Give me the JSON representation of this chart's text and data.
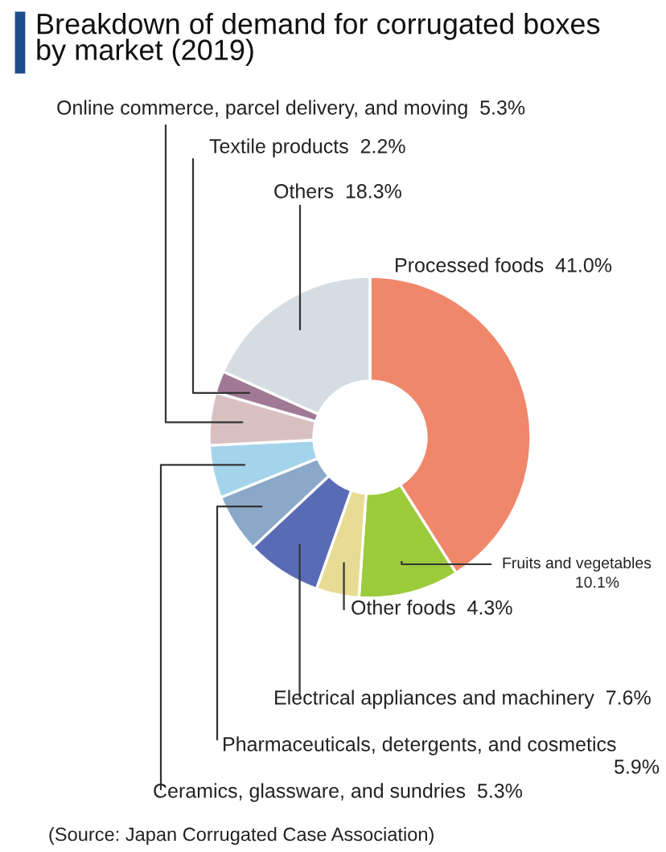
{
  "chart_data": {
    "type": "donut",
    "title": "Breakdown of demand for corrugated boxes\nby market (2019)",
    "categories": [
      "Processed foods",
      "Fruits and vegetables",
      "Other foods",
      "Electrical appliances and machinery",
      "Pharmaceuticals, detergents, and cosmetics",
      "Ceramics, glassware, and sundries",
      "Online commerce, parcel delivery, and moving",
      "Textile products",
      "Others"
    ],
    "values": [
      41.0,
      10.1,
      4.3,
      7.6,
      5.9,
      5.3,
      5.3,
      2.2,
      18.3
    ],
    "value_labels": [
      "41.0%",
      "10.1%",
      "4.3%",
      "7.6%",
      "5.9%",
      "5.3%",
      "5.3%",
      "2.2%",
      "18.3%"
    ],
    "colors": [
      "#f0876b",
      "#9ccb3b",
      "#e8dc94",
      "#5a6bb5",
      "#8aa8c8",
      "#a4d4ec",
      "#d9c0c0",
      "#a07a95",
      "#d5dde2"
    ],
    "annotations": [
      "(Source: Japan Corrugated Case Association)"
    ]
  }
}
